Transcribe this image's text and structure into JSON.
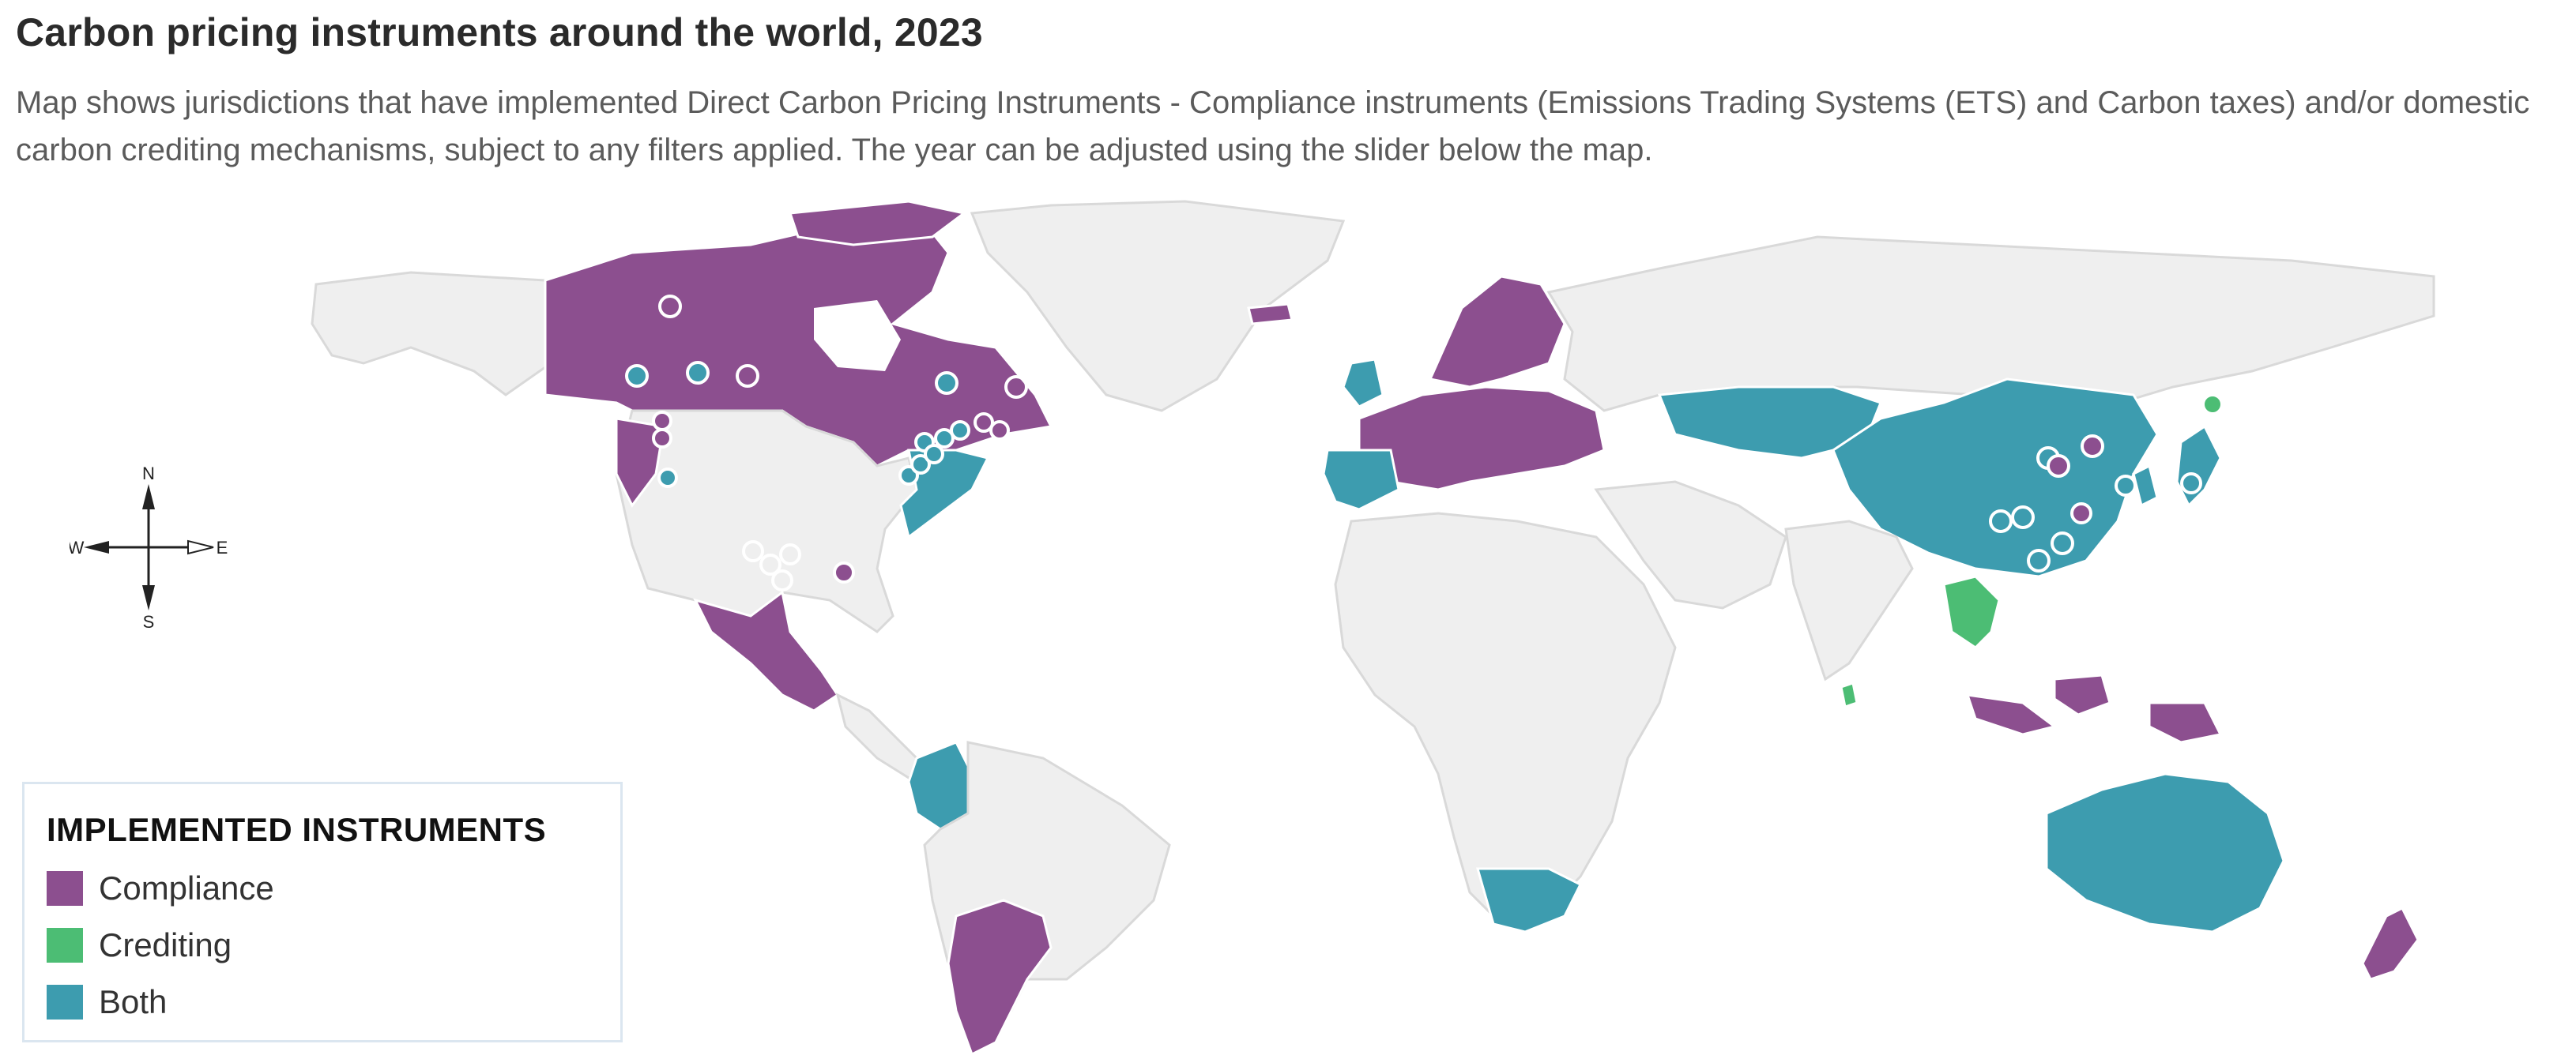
{
  "title": "Carbon pricing instruments around the world, 2023",
  "subtitle": "Map shows jurisdictions that have implemented Direct Carbon Pricing Instruments - Compliance instruments (Emissions Trading Systems (ETS) and Carbon taxes) and/or domestic carbon crediting mechanisms, subject to any filters applied. The year can be adjusted using the slider below the map.",
  "compass": {
    "north": "N",
    "south": "S",
    "east": "E",
    "west": "W"
  },
  "legend": {
    "title": "IMPLEMENTED INSTRUMENTS",
    "items": [
      {
        "label": "Compliance",
        "color": "#8c4f8f"
      },
      {
        "label": "Crediting",
        "color": "#4cbd74"
      },
      {
        "label": "Both",
        "color": "#3d9caf"
      }
    ]
  },
  "colors": {
    "compliance": "#8c4f8f",
    "crediting": "#4cbd74",
    "both": "#3d9caf",
    "no_instrument": "#efefef"
  }
}
